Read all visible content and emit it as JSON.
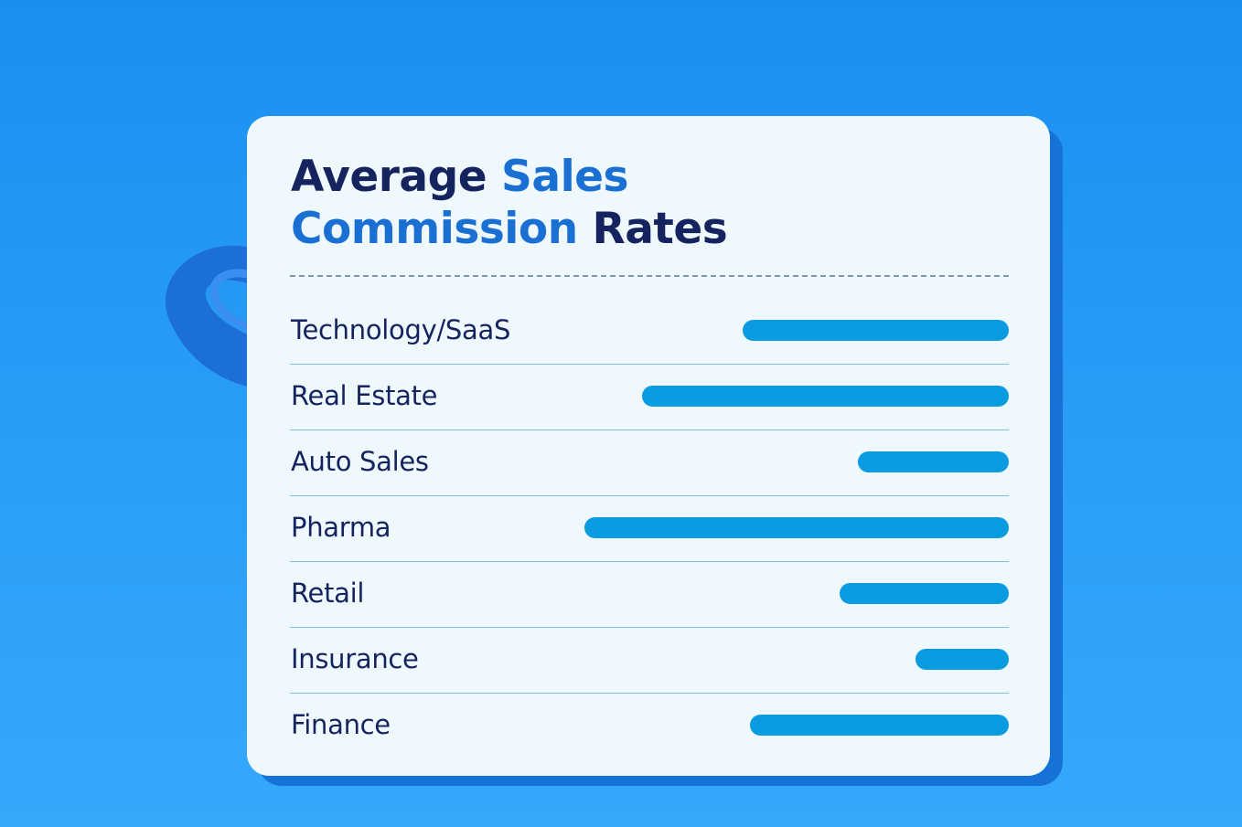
{
  "chart_data": {
    "type": "bar",
    "orientation": "horizontal",
    "title_parts": [
      {
        "text": "Average ",
        "accent": false
      },
      {
        "text": "Sales",
        "accent": true
      },
      {
        "text": "Commission",
        "accent": true,
        "break_before": true
      },
      {
        "text": " Rates",
        "accent": false
      }
    ],
    "categories": [
      "Technology/SaaS",
      "Real Estate",
      "Auto Sales",
      "Pharma",
      "Retail",
      "Insurance",
      "Finance"
    ],
    "values": [
      0.37,
      0.51,
      0.21,
      0.59,
      0.235,
      0.13,
      0.36
    ],
    "value_scale": "fraction of bar track (no values printed)",
    "grid": false,
    "legend": "none"
  },
  "colors": {
    "background": "#2196f3",
    "card": "#eef8fd",
    "title_dark": "#15245f",
    "title_accent": "#1a6fd2",
    "bar": "#0a9be0",
    "row_divider": "#7cc0ee"
  },
  "icons": {
    "decoration": "paperclip-icon"
  }
}
